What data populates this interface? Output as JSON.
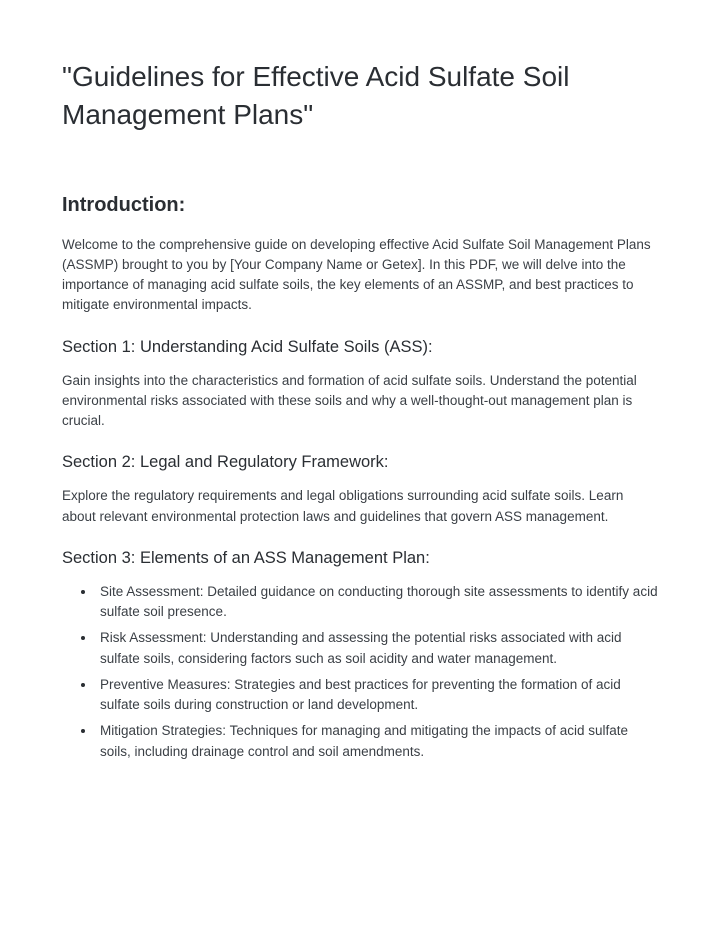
{
  "title": "\"Guidelines for Effective Acid Sulfate Soil Management Plans\"",
  "intro": {
    "heading": "Introduction:",
    "body": "Welcome to the comprehensive guide on developing effective Acid Sulfate Soil Management Plans (ASSMP) brought to you by [Your Company Name or Getex]. In this PDF, we will delve into the importance of managing acid sulfate soils, the key elements of an ASSMP, and best practices to mitigate environmental impacts."
  },
  "section1": {
    "heading": "Section 1: Understanding Acid Sulfate Soils (ASS):",
    "body": "Gain insights into the characteristics and formation of acid sulfate soils. Understand the potential environmental risks associated with these soils and why a well-thought-out management plan is crucial."
  },
  "section2": {
    "heading": "Section 2: Legal and Regulatory Framework:",
    "body": "Explore the regulatory requirements and legal obligations surrounding acid sulfate soils. Learn about relevant environmental protection laws and guidelines that govern ASS management."
  },
  "section3": {
    "heading": "Section 3: Elements of an ASS Management Plan:",
    "bullets": [
      "Site Assessment: Detailed guidance on conducting thorough site assessments to identify acid sulfate soil presence.",
      "Risk Assessment: Understanding and assessing the potential risks associated with acid sulfate soils, considering factors such as soil acidity and water management.",
      "Preventive Measures: Strategies and best practices for preventing the formation of acid sulfate soils during construction or land development.",
      "Mitigation Strategies: Techniques for managing and mitigating the impacts of acid sulfate soils, including drainage control and soil amendments."
    ]
  }
}
